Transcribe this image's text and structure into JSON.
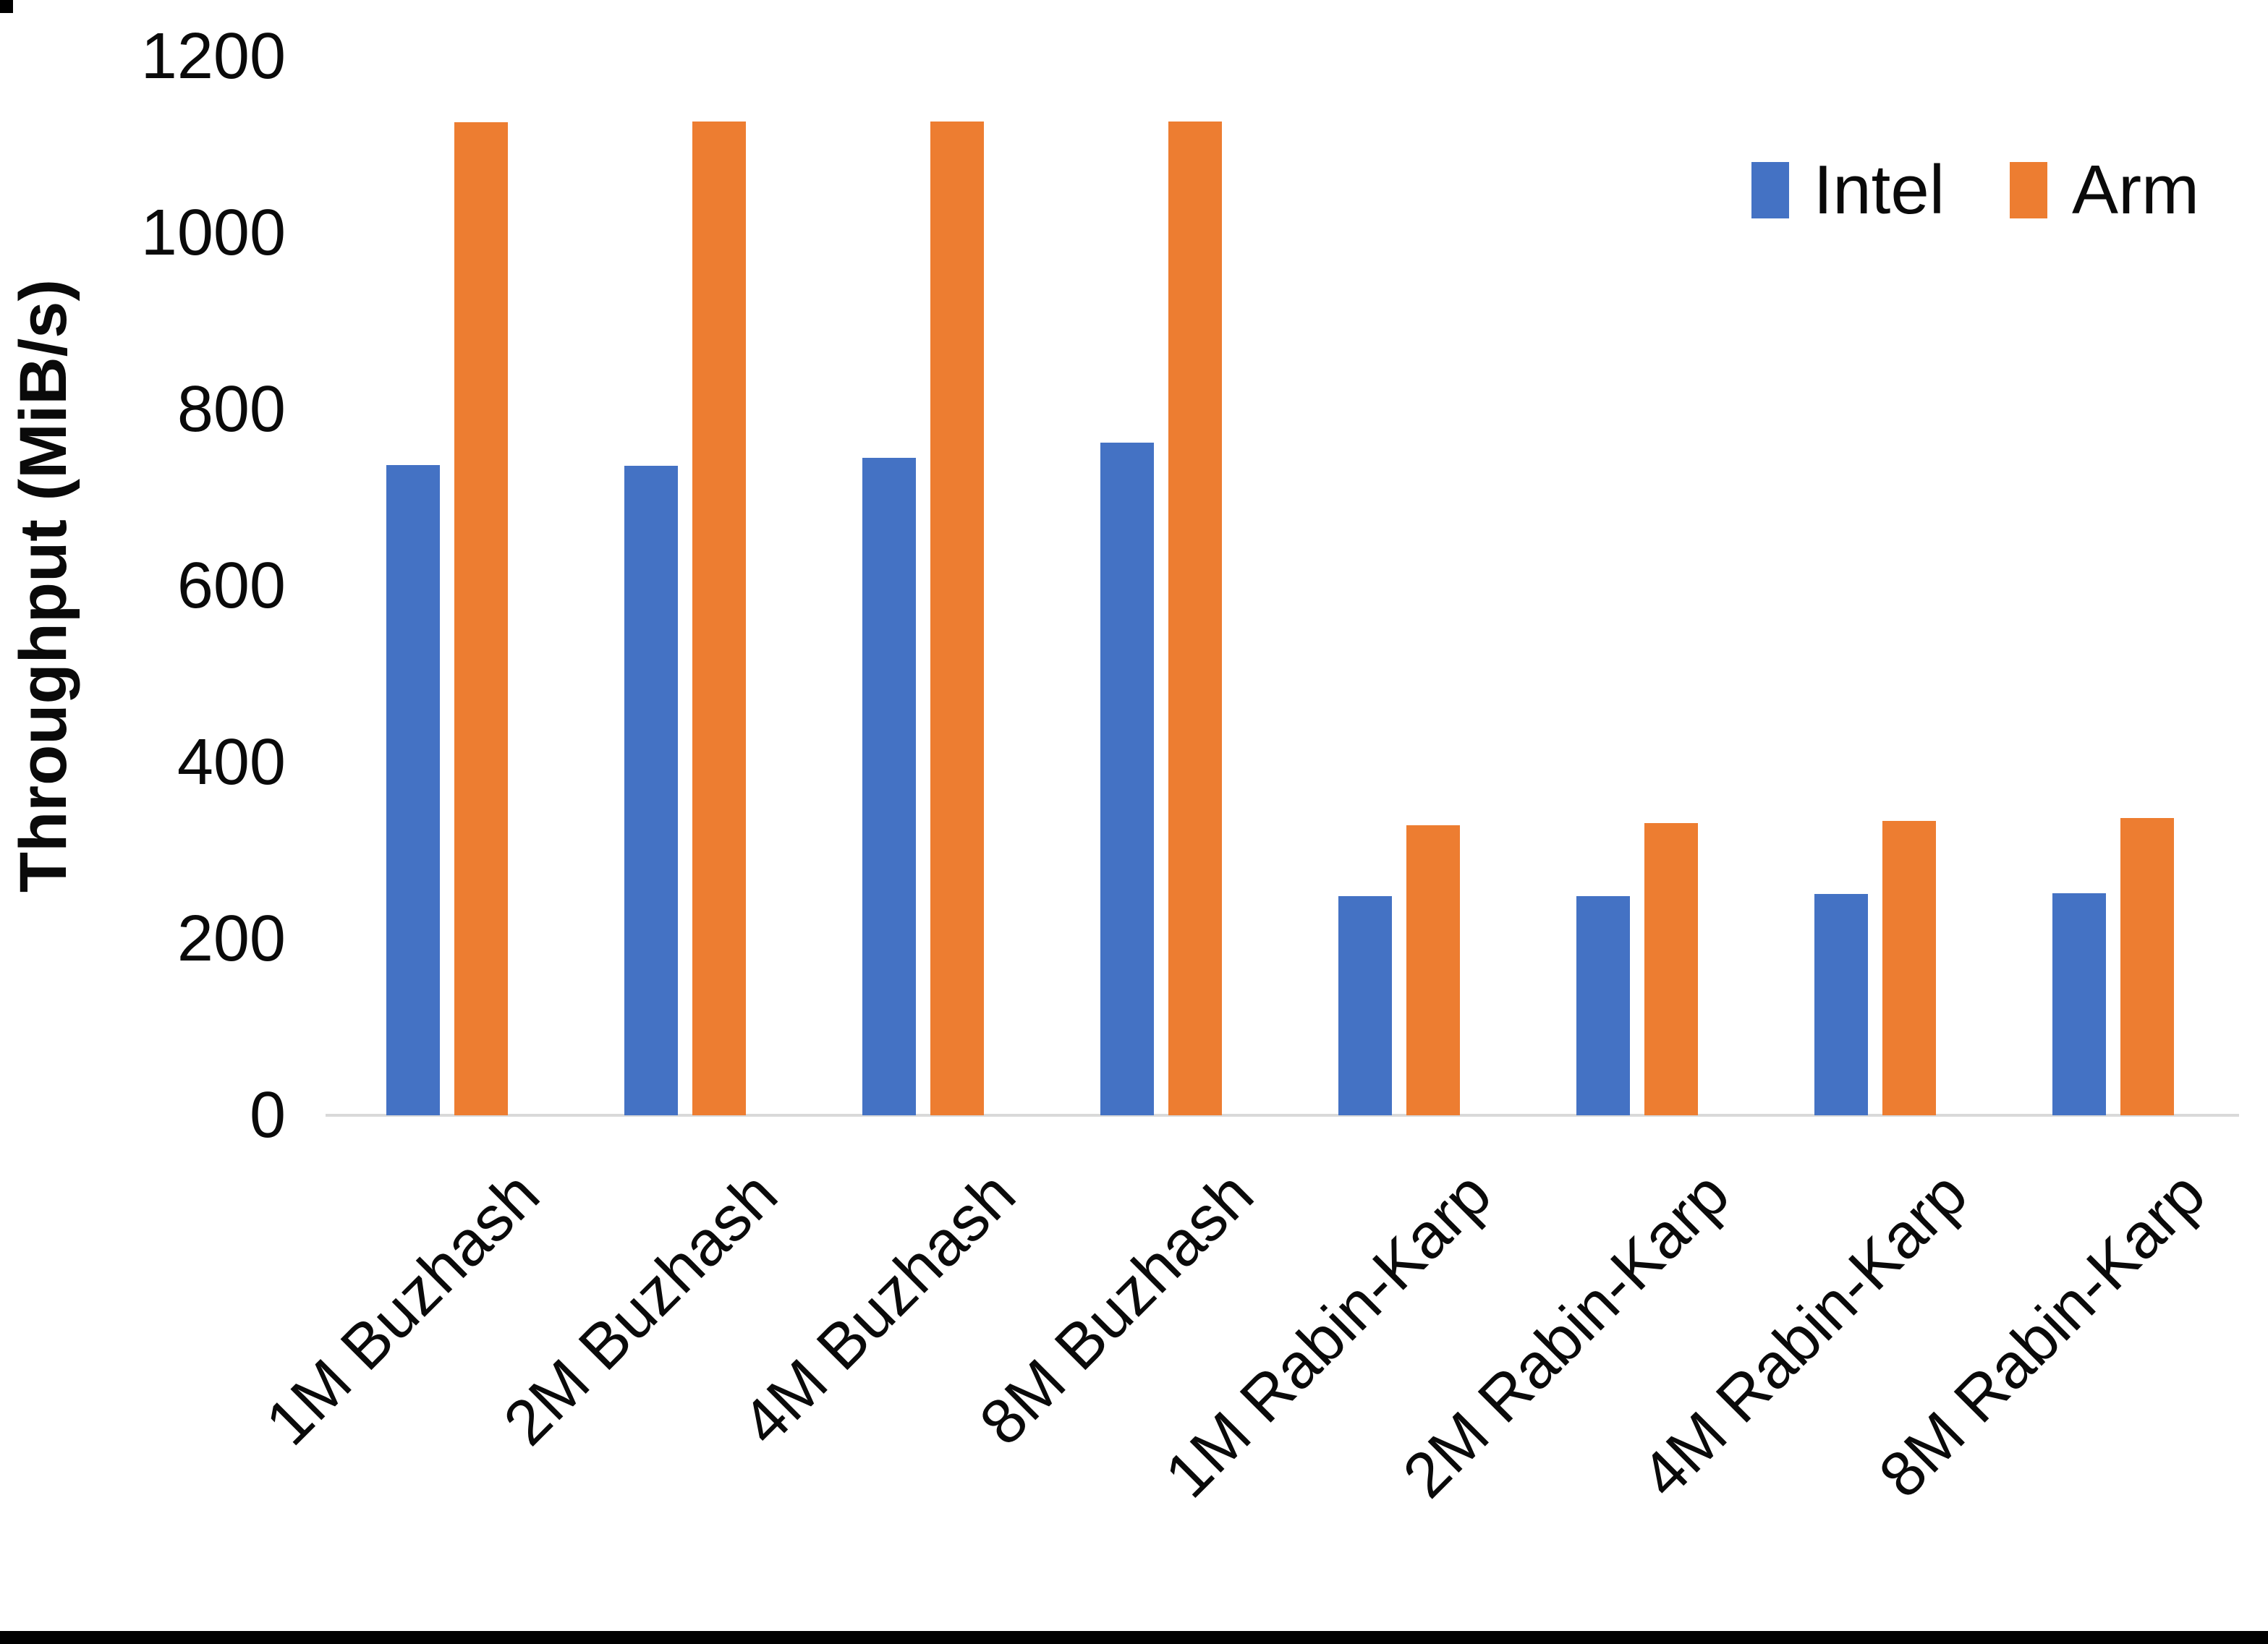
{
  "chart_data": {
    "type": "bar",
    "title": "",
    "xlabel": "",
    "ylabel": "Throughput (MiB/s)",
    "ylim": [
      0,
      1200
    ],
    "yticks": [
      0,
      200,
      400,
      600,
      800,
      1000,
      1200
    ],
    "grid": false,
    "legend_position": "top-right",
    "categories": [
      "1M Buzhash",
      "2M Buzhash",
      "4M Buzhash",
      "8M Buzhash",
      "1M Rabin-Karp",
      "2M Rabin-Karp",
      "4M Rabin-Karp",
      "8M Rabin-Karp"
    ],
    "series": [
      {
        "name": "Intel",
        "color": "#4472C4",
        "values": [
          737,
          736,
          745,
          762,
          248,
          248,
          251,
          252
        ]
      },
      {
        "name": "Arm",
        "color": "#ED7D31",
        "values": [
          1125,
          1126,
          1126,
          1126,
          329,
          331,
          334,
          337
        ]
      }
    ],
    "axis_line_color": "#d9d9d9",
    "text_color": "#0a0a0a"
  }
}
